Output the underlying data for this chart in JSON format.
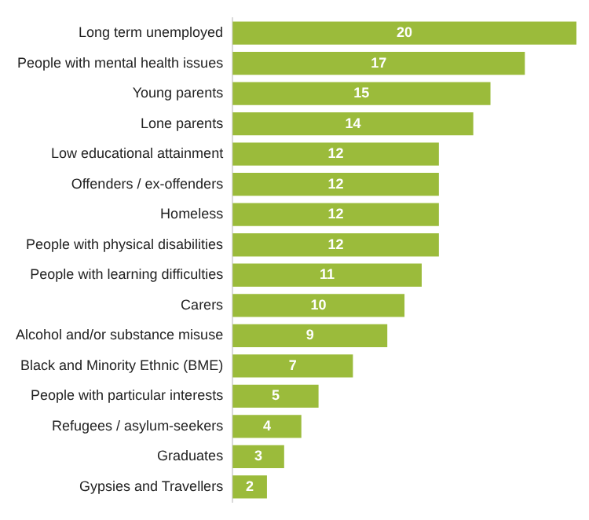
{
  "chart_data": {
    "type": "bar",
    "orientation": "horizontal",
    "categories": [
      "Long term unemployed",
      "People with mental health issues",
      "Young parents",
      "Lone parents",
      "Low educational attainment",
      "Offenders / ex-offenders",
      "Homeless",
      "People with physical disabilities",
      "People with learning difficulties",
      "Carers",
      "Alcohol and/or substance misuse",
      "Black and Minority Ethnic (BME)",
      "People with particular interests",
      "Refugees / asylum-seekers",
      "Graduates",
      "Gypsies and Travellers"
    ],
    "values": [
      20,
      17,
      15,
      14,
      12,
      12,
      12,
      12,
      11,
      10,
      9,
      7,
      5,
      4,
      3,
      2
    ],
    "color": "#9bbb3b",
    "data_labels": true
  }
}
